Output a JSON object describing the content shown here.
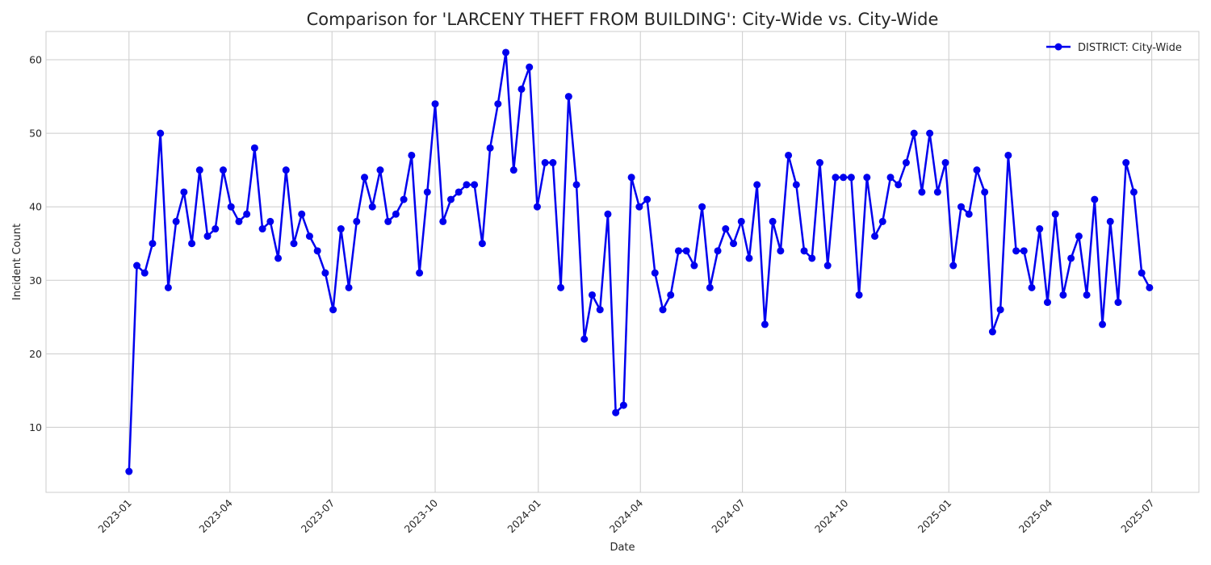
{
  "chart_data": {
    "type": "line",
    "title": "Comparison for 'LARCENY THEFT FROM BUILDING': City-Wide vs. City-Wide",
    "xlabel": "Date",
    "ylabel": "Incident Count",
    "grid": true,
    "legend_position": "top-right",
    "x_range": [
      "2022-10-19",
      "2025-08-12"
    ],
    "ylim": [
      1.15,
      63.85
    ],
    "x_ticks": [
      "2023-01",
      "2023-04",
      "2023-07",
      "2023-10",
      "2024-01",
      "2024-04",
      "2024-07",
      "2024-10",
      "2025-01",
      "2025-04",
      "2025-07"
    ],
    "y_ticks": [
      10,
      20,
      30,
      40,
      50,
      60
    ],
    "x": [
      "2023-01-01",
      "2023-01-08",
      "2023-01-15",
      "2023-01-22",
      "2023-01-29",
      "2023-02-05",
      "2023-02-12",
      "2023-02-19",
      "2023-02-26",
      "2023-03-05",
      "2023-03-12",
      "2023-03-19",
      "2023-03-26",
      "2023-04-02",
      "2023-04-09",
      "2023-04-16",
      "2023-04-23",
      "2023-04-30",
      "2023-05-07",
      "2023-05-14",
      "2023-05-21",
      "2023-05-28",
      "2023-06-04",
      "2023-06-11",
      "2023-06-18",
      "2023-06-25",
      "2023-07-02",
      "2023-07-09",
      "2023-07-16",
      "2023-07-23",
      "2023-07-30",
      "2023-08-06",
      "2023-08-13",
      "2023-08-20",
      "2023-08-27",
      "2023-09-03",
      "2023-09-10",
      "2023-09-17",
      "2023-09-24",
      "2023-10-01",
      "2023-10-08",
      "2023-10-15",
      "2023-10-22",
      "2023-10-29",
      "2023-11-05",
      "2023-11-12",
      "2023-11-19",
      "2023-11-26",
      "2023-12-03",
      "2023-12-10",
      "2023-12-17",
      "2023-12-24",
      "2023-12-31",
      "2024-01-07",
      "2024-01-14",
      "2024-01-21",
      "2024-01-28",
      "2024-02-04",
      "2024-02-11",
      "2024-02-18",
      "2024-02-25",
      "2024-03-03",
      "2024-03-10",
      "2024-03-17",
      "2024-03-24",
      "2024-03-31",
      "2024-04-07",
      "2024-04-14",
      "2024-04-21",
      "2024-04-28",
      "2024-05-05",
      "2024-05-12",
      "2024-05-19",
      "2024-05-26",
      "2024-06-02",
      "2024-06-09",
      "2024-06-16",
      "2024-06-23",
      "2024-06-30",
      "2024-07-07",
      "2024-07-14",
      "2024-07-21",
      "2024-07-28",
      "2024-08-04",
      "2024-08-11",
      "2024-08-18",
      "2024-08-25",
      "2024-09-01",
      "2024-09-08",
      "2024-09-15",
      "2024-09-22",
      "2024-09-29",
      "2024-10-06",
      "2024-10-13",
      "2024-10-20",
      "2024-10-27",
      "2024-11-03",
      "2024-11-10",
      "2024-11-17",
      "2024-11-24",
      "2024-12-01",
      "2024-12-08",
      "2024-12-15",
      "2024-12-22",
      "2024-12-29",
      "2025-01-05",
      "2025-01-12",
      "2025-01-19",
      "2025-01-26",
      "2025-02-02",
      "2025-02-09",
      "2025-02-16",
      "2025-02-23",
      "2025-03-02",
      "2025-03-09",
      "2025-03-16",
      "2025-03-23",
      "2025-03-30",
      "2025-04-06",
      "2025-04-13",
      "2025-04-20",
      "2025-04-27",
      "2025-05-04",
      "2025-05-11",
      "2025-05-18",
      "2025-05-25",
      "2025-06-01",
      "2025-06-08",
      "2025-06-15",
      "2025-06-22",
      "2025-06-29"
    ],
    "series": [
      {
        "name": "DISTRICT: City-Wide",
        "color": "#0000ee",
        "marker": "circle",
        "values": [
          4,
          32,
          31,
          35,
          50,
          29,
          38,
          42,
          35,
          45,
          36,
          37,
          45,
          40,
          38,
          39,
          48,
          37,
          38,
          33,
          45,
          35,
          39,
          36,
          34,
          31,
          26,
          37,
          29,
          38,
          44,
          40,
          45,
          38,
          39,
          41,
          47,
          31,
          42,
          54,
          38,
          41,
          42,
          43,
          43,
          35,
          48,
          54,
          61,
          45,
          56,
          59,
          40,
          46,
          46,
          29,
          55,
          43,
          22,
          28,
          26,
          39,
          12,
          13,
          44,
          40,
          41,
          31,
          26,
          28,
          34,
          34,
          32,
          40,
          29,
          34,
          37,
          35,
          38,
          33,
          43,
          24,
          38,
          34,
          47,
          43,
          34,
          33,
          46,
          32,
          44,
          44,
          44,
          28,
          44,
          36,
          38,
          44,
          43,
          46,
          50,
          42,
          50,
          42,
          46,
          32,
          40,
          39,
          45,
          42,
          23,
          26,
          47,
          34,
          34,
          29,
          37,
          27,
          39,
          28,
          33,
          36,
          28,
          41,
          24,
          38,
          27,
          46,
          42,
          31,
          29
        ]
      }
    ]
  }
}
